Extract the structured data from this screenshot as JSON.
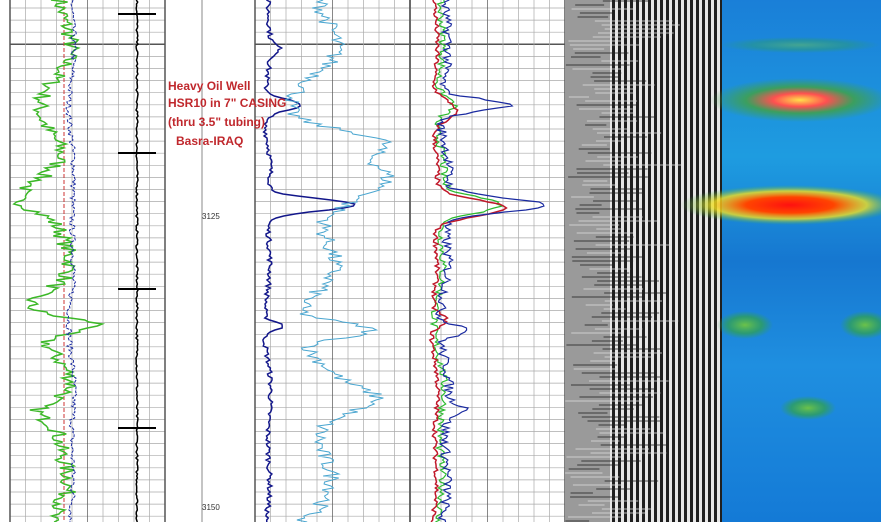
{
  "annotation": {
    "lines": [
      "Heavy Oil Well",
      "HSR10 in 7\" CASING",
      "(thru 3.5\" tubing)",
      "Basra-IRAQ"
    ]
  },
  "depth_labels": [
    3125,
    3150
  ]
}
